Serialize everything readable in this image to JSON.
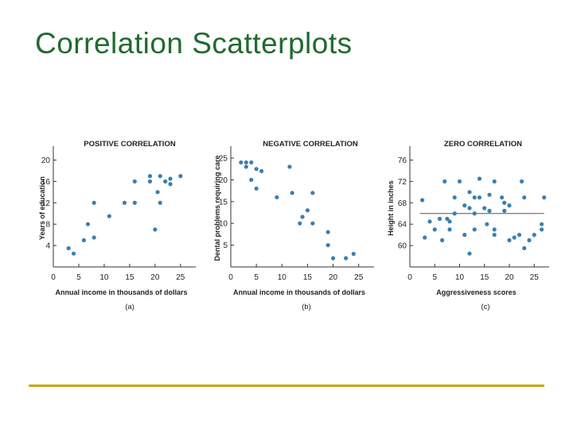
{
  "slide": {
    "title": "Correlation Scatterplots",
    "title_color": "#1f6b2e",
    "rule_color": "#c8a812"
  },
  "colors": {
    "point": "#3a7fb0",
    "axis": "#333333",
    "text": "#222222"
  },
  "chart_data": [
    {
      "type": "scatter",
      "title": "POSITIVE CORRELATION",
      "xlabel": "Annual income in thousands of dollars",
      "ylabel": "Years of education",
      "caption": "(a)",
      "xlim": [
        0,
        28
      ],
      "ylim": [
        0,
        22
      ],
      "xticks": [
        0,
        5,
        10,
        15,
        20,
        25
      ],
      "xtick_labels": [
        "0",
        "5",
        "10",
        "15",
        "20",
        "25"
      ],
      "yticks": [
        4,
        8,
        12,
        16,
        20
      ],
      "ytick_labels": [
        "4",
        "8",
        "12",
        "16",
        "20"
      ],
      "points": [
        [
          3,
          3.5
        ],
        [
          4,
          2.5
        ],
        [
          6,
          5
        ],
        [
          6.8,
          8
        ],
        [
          8,
          5.5
        ],
        [
          8,
          12
        ],
        [
          11,
          9.5
        ],
        [
          14,
          12
        ],
        [
          16,
          16
        ],
        [
          16,
          12
        ],
        [
          19,
          17
        ],
        [
          19,
          16
        ],
        [
          20.5,
          14
        ],
        [
          21,
          17
        ],
        [
          21,
          12
        ],
        [
          20,
          7
        ],
        [
          22,
          16
        ],
        [
          23,
          15.5
        ],
        [
          23,
          16.5
        ],
        [
          25,
          17
        ]
      ]
    },
    {
      "type": "scatter",
      "title": "NEGATIVE CORRELATION",
      "xlabel": "Annual income in thousands of dollars",
      "ylabel": "Dental problems requiring care",
      "caption": "(b)",
      "xlim": [
        0,
        28
      ],
      "ylim": [
        0,
        27
      ],
      "xticks": [
        0,
        5,
        10,
        15,
        20,
        25
      ],
      "xtick_labels": [
        "0",
        "5",
        "10",
        "15",
        "20",
        "25"
      ],
      "yticks": [
        5,
        10,
        15,
        20,
        25
      ],
      "ytick_labels": [
        "5",
        "10",
        "15",
        "20",
        "25"
      ],
      "points": [
        [
          2,
          24
        ],
        [
          3,
          24
        ],
        [
          3,
          23
        ],
        [
          4,
          24
        ],
        [
          4,
          20
        ],
        [
          5,
          22.5
        ],
        [
          5,
          18
        ],
        [
          6,
          22
        ],
        [
          9,
          16
        ],
        [
          11.5,
          23
        ],
        [
          12,
          17
        ],
        [
          13.5,
          10
        ],
        [
          14,
          11.5
        ],
        [
          15,
          13
        ],
        [
          16,
          10
        ],
        [
          16,
          17
        ],
        [
          19,
          8
        ],
        [
          19,
          5
        ],
        [
          20,
          2
        ],
        [
          22.5,
          2
        ],
        [
          24,
          3
        ]
      ]
    },
    {
      "type": "scatter",
      "title": "ZERO CORRELATION",
      "xlabel": "Aggressiveness scores",
      "ylabel": "Height in inches",
      "caption": "(c)",
      "xlim": [
        0,
        28
      ],
      "ylim": [
        56,
        78
      ],
      "xticks": [
        0,
        5,
        10,
        15,
        20,
        25
      ],
      "xtick_labels": [
        "0",
        "5",
        "10",
        "15",
        "20",
        "25"
      ],
      "yticks": [
        60,
        64,
        68,
        72,
        76
      ],
      "ytick_labels": [
        "60",
        "64",
        "68",
        "72",
        "76"
      ],
      "trend_line": {
        "x": [
          2,
          27
        ],
        "y": [
          66,
          66
        ]
      },
      "points": [
        [
          2.5,
          68.5
        ],
        [
          3,
          61.5
        ],
        [
          4,
          64.5
        ],
        [
          5,
          63
        ],
        [
          6,
          65
        ],
        [
          6.5,
          61
        ],
        [
          7,
          72
        ],
        [
          7.5,
          65
        ],
        [
          8,
          64.5
        ],
        [
          8,
          63
        ],
        [
          9,
          66
        ],
        [
          9,
          69
        ],
        [
          10,
          72
        ],
        [
          11,
          67.5
        ],
        [
          11,
          62
        ],
        [
          12,
          70
        ],
        [
          12,
          58.5
        ],
        [
          12,
          67
        ],
        [
          13,
          66
        ],
        [
          13,
          69
        ],
        [
          13,
          63
        ],
        [
          14,
          72.5
        ],
        [
          14,
          69
        ],
        [
          15,
          67
        ],
        [
          15.5,
          64
        ],
        [
          16,
          69.5
        ],
        [
          16,
          66.5
        ],
        [
          17,
          72
        ],
        [
          17,
          63
        ],
        [
          17,
          62
        ],
        [
          18.5,
          69
        ],
        [
          19,
          68
        ],
        [
          19,
          66.5
        ],
        [
          20,
          67.5
        ],
        [
          20,
          61
        ],
        [
          21,
          61.5
        ],
        [
          22,
          62
        ],
        [
          22.5,
          72
        ],
        [
          23,
          69
        ],
        [
          23,
          59.5
        ],
        [
          24,
          61
        ],
        [
          25,
          62
        ],
        [
          26.5,
          64
        ],
        [
          26.5,
          63
        ],
        [
          27,
          69
        ]
      ]
    }
  ]
}
